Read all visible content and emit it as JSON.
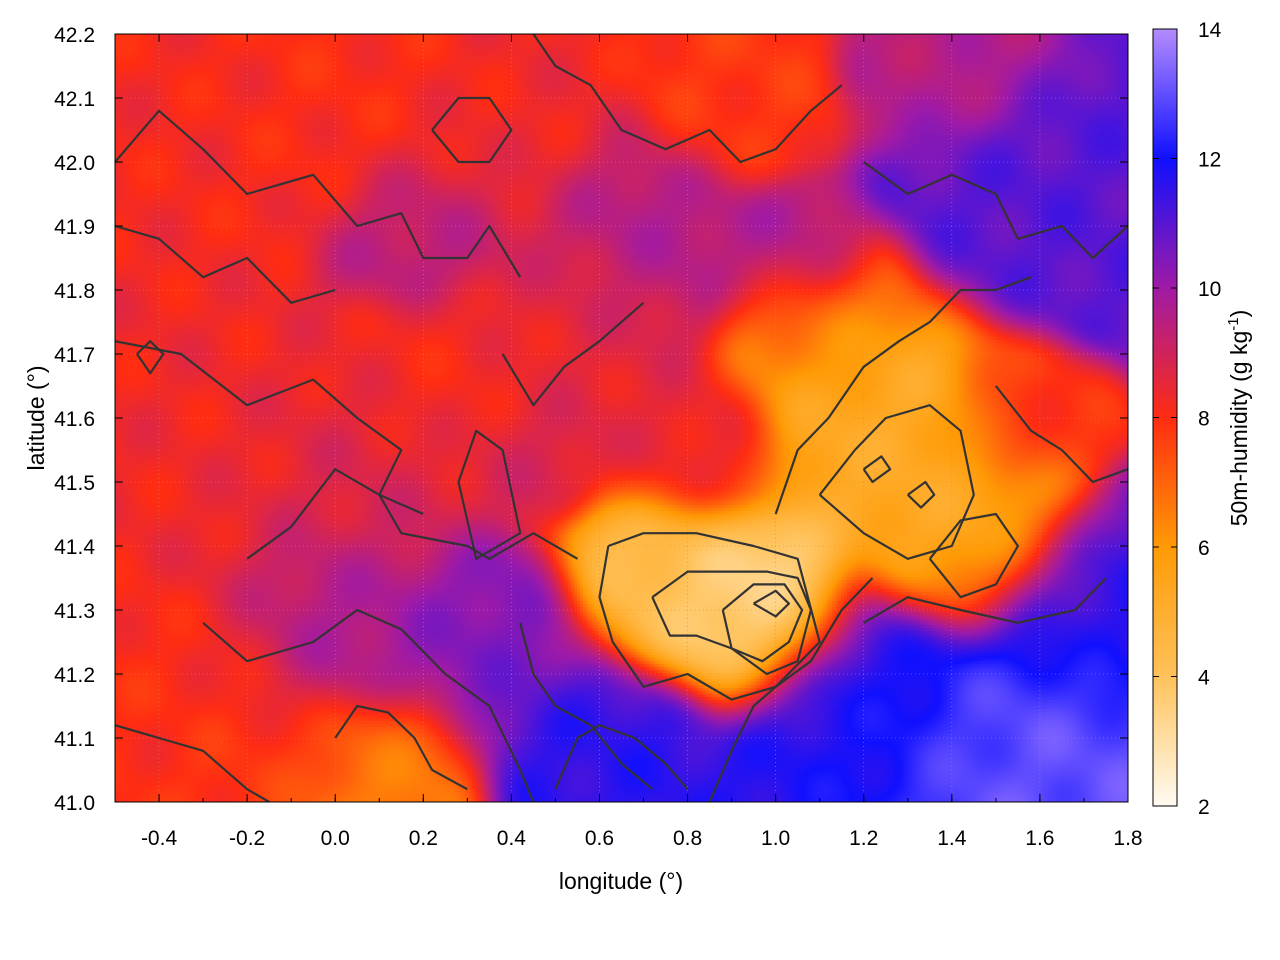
{
  "chart_data": {
    "type": "heatmap",
    "title": "",
    "xlabel": "longitude (°)",
    "ylabel": "latitude (°)",
    "xlim": [
      -0.5,
      1.8
    ],
    "ylim": [
      41.0,
      42.2
    ],
    "xticks": [
      "-0.4",
      "-0.2",
      "0.0",
      "0.2",
      "0.4",
      "0.6",
      "0.8",
      "1.0",
      "1.2",
      "1.4",
      "1.6",
      "1.8"
    ],
    "xtick_values": [
      -0.4,
      -0.2,
      0.0,
      0.2,
      0.4,
      0.6,
      0.8,
      1.0,
      1.2,
      1.4,
      1.6,
      1.8
    ],
    "yticks": [
      "41.0",
      "41.1",
      "41.2",
      "41.3",
      "41.4",
      "41.5",
      "41.6",
      "41.7",
      "41.8",
      "41.9",
      "42.0",
      "42.1",
      "42.2"
    ],
    "ytick_values": [
      41.0,
      41.1,
      41.2,
      41.3,
      41.4,
      41.5,
      41.6,
      41.7,
      41.8,
      41.9,
      42.0,
      42.1,
      42.2
    ],
    "colorbar": {
      "label": "50m-humidity (g kg",
      "label_sup": "-1",
      "label_end": ")",
      "range": [
        2,
        14
      ],
      "ticks": [
        "2",
        "4",
        "6",
        "8",
        "10",
        "12",
        "14"
      ],
      "tick_values": [
        2,
        4,
        6,
        8,
        10,
        12,
        14
      ],
      "colors": [
        "#fffbf2",
        "#ffc25a",
        "#ff9a05",
        "#ff2c12",
        "#a01aa6",
        "#1010ff",
        "#b48cff"
      ]
    },
    "contour_color": "#333333",
    "grid": true,
    "humidity_regions": [
      {
        "lon": -0.3,
        "lat": 42.05,
        "q": 8.2,
        "r": 0.2
      },
      {
        "lon": 0.0,
        "lat": 42.1,
        "q": 8.0,
        "r": 0.22
      },
      {
        "lon": 0.35,
        "lat": 42.05,
        "q": 8.3,
        "r": 0.2
      },
      {
        "lon": 0.9,
        "lat": 42.1,
        "q": 7.8,
        "r": 0.15
      },
      {
        "lon": 1.4,
        "lat": 42.15,
        "q": 9.5,
        "r": 0.15
      },
      {
        "lon": -0.3,
        "lat": 41.55,
        "q": 8.3,
        "r": 0.25
      },
      {
        "lon": 0.05,
        "lat": 41.5,
        "q": 8.8,
        "r": 0.2
      },
      {
        "lon": 0.25,
        "lat": 41.65,
        "q": 8.1,
        "r": 0.18
      },
      {
        "lon": 0.55,
        "lat": 41.75,
        "q": 8.5,
        "r": 0.18
      },
      {
        "lon": 0.2,
        "lat": 41.9,
        "q": 9.6,
        "r": 0.15
      },
      {
        "lon": 0.7,
        "lat": 41.88,
        "q": 9.7,
        "r": 0.18
      },
      {
        "lon": 1.05,
        "lat": 41.85,
        "q": 9.9,
        "r": 0.12
      },
      {
        "lon": 1.6,
        "lat": 41.95,
        "q": 11.0,
        "r": 0.22
      },
      {
        "lon": 1.25,
        "lat": 41.6,
        "q": 5.2,
        "r": 0.2
      },
      {
        "lon": 1.1,
        "lat": 41.75,
        "q": 6.5,
        "r": 0.15
      },
      {
        "lon": 0.95,
        "lat": 41.3,
        "q": 3.0,
        "r": 0.15
      },
      {
        "lon": 0.75,
        "lat": 41.35,
        "q": 4.2,
        "r": 0.16
      },
      {
        "lon": 1.45,
        "lat": 41.42,
        "q": 5.3,
        "r": 0.17
      },
      {
        "lon": 1.55,
        "lat": 41.6,
        "q": 8.0,
        "r": 0.12
      },
      {
        "lon": 0.35,
        "lat": 41.25,
        "q": 10.5,
        "r": 0.17
      },
      {
        "lon": 0.0,
        "lat": 41.28,
        "q": 9.8,
        "r": 0.2
      },
      {
        "lon": -0.3,
        "lat": 41.2,
        "q": 8.0,
        "r": 0.18
      },
      {
        "lon": 0.1,
        "lat": 41.05,
        "q": 6.5,
        "r": 0.15
      },
      {
        "lon": -0.15,
        "lat": 41.08,
        "q": 7.8,
        "r": 0.13
      },
      {
        "lon": 0.6,
        "lat": 41.08,
        "q": 11.6,
        "r": 0.17
      },
      {
        "lon": 1.2,
        "lat": 41.15,
        "q": 11.8,
        "r": 0.2
      },
      {
        "lon": 1.55,
        "lat": 41.08,
        "q": 13.0,
        "r": 0.22
      },
      {
        "lon": 1.7,
        "lat": 41.3,
        "q": 11.6,
        "r": 0.18
      },
      {
        "lon": 0.8,
        "lat": 41.55,
        "q": 8.5,
        "r": 0.14
      },
      {
        "lon": 0.45,
        "lat": 41.55,
        "q": 8.9,
        "r": 0.12
      }
    ],
    "contours": [
      [
        [
          -0.5,
          42.0
        ],
        [
          -0.4,
          42.08
        ],
        [
          -0.3,
          42.02
        ],
        [
          -0.2,
          41.95
        ],
        [
          -0.05,
          41.98
        ],
        [
          0.05,
          41.9
        ],
        [
          0.15,
          41.92
        ],
        [
          0.2,
          41.85
        ],
        [
          0.3,
          41.85
        ],
        [
          0.35,
          41.9
        ],
        [
          0.42,
          41.82
        ]
      ],
      [
        [
          -0.5,
          41.72
        ],
        [
          -0.35,
          41.7
        ],
        [
          -0.2,
          41.62
        ],
        [
          -0.05,
          41.66
        ],
        [
          0.05,
          41.6
        ],
        [
          0.15,
          41.55
        ],
        [
          0.1,
          41.48
        ],
        [
          0.15,
          41.42
        ],
        [
          0.3,
          41.4
        ],
        [
          0.35,
          41.38
        ],
        [
          0.45,
          41.42
        ],
        [
          0.55,
          41.38
        ]
      ],
      [
        [
          -0.2,
          41.38
        ],
        [
          -0.1,
          41.43
        ],
        [
          0.0,
          41.52
        ],
        [
          0.1,
          41.48
        ],
        [
          0.2,
          41.45
        ]
      ],
      [
        [
          0.28,
          41.5
        ],
        [
          0.32,
          41.58
        ],
        [
          0.38,
          41.55
        ],
        [
          0.42,
          41.42
        ],
        [
          0.32,
          41.38
        ],
        [
          0.28,
          41.5
        ]
      ],
      [
        [
          0.38,
          41.7
        ],
        [
          0.45,
          41.62
        ],
        [
          0.52,
          41.68
        ],
        [
          0.6,
          41.72
        ],
        [
          0.7,
          41.78
        ]
      ],
      [
        [
          0.62,
          41.4
        ],
        [
          0.7,
          41.42
        ],
        [
          0.82,
          41.42
        ],
        [
          0.95,
          41.4
        ],
        [
          1.05,
          41.38
        ],
        [
          1.1,
          41.25
        ],
        [
          1.0,
          41.18
        ],
        [
          0.9,
          41.16
        ],
        [
          0.8,
          41.2
        ],
        [
          0.7,
          41.18
        ],
        [
          0.63,
          41.25
        ],
        [
          0.6,
          41.32
        ],
        [
          0.62,
          41.4
        ]
      ],
      [
        [
          0.72,
          41.32
        ],
        [
          0.8,
          41.36
        ],
        [
          0.9,
          41.36
        ],
        [
          0.98,
          41.36
        ],
        [
          1.05,
          41.35
        ],
        [
          1.08,
          41.3
        ],
        [
          1.05,
          41.22
        ],
        [
          0.98,
          41.2
        ],
        [
          0.9,
          41.24
        ],
        [
          0.82,
          41.26
        ],
        [
          0.76,
          41.26
        ],
        [
          0.72,
          41.32
        ]
      ],
      [
        [
          0.88,
          41.3
        ],
        [
          0.95,
          41.34
        ],
        [
          1.02,
          41.34
        ],
        [
          1.06,
          41.3
        ],
        [
          1.03,
          41.25
        ],
        [
          0.97,
          41.22
        ],
        [
          0.9,
          41.24
        ],
        [
          0.88,
          41.3
        ]
      ],
      [
        [
          0.95,
          41.31
        ],
        [
          1.0,
          41.33
        ],
        [
          1.03,
          41.31
        ],
        [
          1.0,
          41.29
        ],
        [
          0.95,
          41.31
        ]
      ],
      [
        [
          1.0,
          41.45
        ],
        [
          1.05,
          41.55
        ],
        [
          1.12,
          41.6
        ],
        [
          1.2,
          41.68
        ],
        [
          1.28,
          41.72
        ],
        [
          1.35,
          41.75
        ],
        [
          1.42,
          41.8
        ],
        [
          1.5,
          41.8
        ],
        [
          1.58,
          41.82
        ]
      ],
      [
        [
          1.1,
          41.48
        ],
        [
          1.18,
          41.55
        ],
        [
          1.25,
          41.6
        ],
        [
          1.35,
          41.62
        ],
        [
          1.42,
          41.58
        ],
        [
          1.45,
          41.48
        ],
        [
          1.4,
          41.4
        ],
        [
          1.3,
          41.38
        ],
        [
          1.2,
          41.42
        ],
        [
          1.1,
          41.48
        ]
      ],
      [
        [
          1.35,
          41.38
        ],
        [
          1.42,
          41.44
        ],
        [
          1.5,
          41.45
        ],
        [
          1.55,
          41.4
        ],
        [
          1.5,
          41.34
        ],
        [
          1.42,
          41.32
        ],
        [
          1.35,
          41.38
        ]
      ],
      [
        [
          1.2,
          41.28
        ],
        [
          1.3,
          41.32
        ],
        [
          1.42,
          41.3
        ],
        [
          1.55,
          41.28
        ],
        [
          1.68,
          41.3
        ],
        [
          1.75,
          41.35
        ]
      ],
      [
        [
          0.5,
          41.02
        ],
        [
          0.55,
          41.1
        ],
        [
          0.6,
          41.12
        ],
        [
          0.68,
          41.1
        ],
        [
          0.75,
          41.06
        ],
        [
          0.8,
          41.02
        ]
      ],
      [
        [
          0.42,
          41.28
        ],
        [
          0.45,
          41.2
        ],
        [
          0.5,
          41.15
        ],
        [
          0.58,
          41.12
        ],
        [
          0.65,
          41.06
        ],
        [
          0.72,
          41.02
        ]
      ],
      [
        [
          0.85,
          41.0
        ],
        [
          0.9,
          41.08
        ],
        [
          0.95,
          41.15
        ],
        [
          1.0,
          41.18
        ],
        [
          1.08,
          41.22
        ],
        [
          1.15,
          41.3
        ],
        [
          1.22,
          41.35
        ]
      ],
      [
        [
          -0.3,
          41.28
        ],
        [
          -0.2,
          41.22
        ],
        [
          -0.05,
          41.25
        ],
        [
          0.05,
          41.3
        ],
        [
          0.15,
          41.27
        ],
        [
          0.25,
          41.2
        ],
        [
          0.35,
          41.15
        ],
        [
          0.42,
          41.05
        ],
        [
          0.45,
          41.0
        ]
      ],
      [
        [
          -0.5,
          41.12
        ],
        [
          -0.4,
          41.1
        ],
        [
          -0.3,
          41.08
        ],
        [
          -0.2,
          41.02
        ],
        [
          -0.15,
          41.0
        ]
      ],
      [
        [
          0.0,
          41.1
        ],
        [
          0.05,
          41.15
        ],
        [
          0.12,
          41.14
        ],
        [
          0.18,
          41.1
        ],
        [
          0.22,
          41.05
        ],
        [
          0.3,
          41.02
        ]
      ],
      [
        [
          0.45,
          42.2
        ],
        [
          0.5,
          42.15
        ],
        [
          0.58,
          42.12
        ],
        [
          0.65,
          42.05
        ],
        [
          0.75,
          42.02
        ],
        [
          0.85,
          42.05
        ],
        [
          0.92,
          42.0
        ],
        [
          1.0,
          42.02
        ],
        [
          1.08,
          42.08
        ],
        [
          1.15,
          42.12
        ]
      ],
      [
        [
          1.2,
          42.0
        ],
        [
          1.3,
          41.95
        ],
        [
          1.4,
          41.98
        ],
        [
          1.5,
          41.95
        ],
        [
          1.55,
          41.88
        ],
        [
          1.65,
          41.9
        ],
        [
          1.72,
          41.85
        ],
        [
          1.8,
          41.9
        ]
      ],
      [
        [
          1.5,
          41.65
        ],
        [
          1.58,
          41.58
        ],
        [
          1.65,
          41.55
        ],
        [
          1.72,
          41.5
        ],
        [
          1.8,
          41.52
        ]
      ],
      [
        [
          -0.5,
          41.9
        ],
        [
          -0.4,
          41.88
        ],
        [
          -0.3,
          41.82
        ],
        [
          -0.2,
          41.85
        ],
        [
          -0.1,
          41.78
        ],
        [
          0.0,
          41.8
        ]
      ],
      [
        [
          0.22,
          42.05
        ],
        [
          0.28,
          42.1
        ],
        [
          0.35,
          42.1
        ],
        [
          0.4,
          42.05
        ],
        [
          0.35,
          42.0
        ],
        [
          0.28,
          42.0
        ],
        [
          0.22,
          42.05
        ]
      ],
      [
        [
          1.3,
          41.48
        ],
        [
          1.34,
          41.5
        ],
        [
          1.36,
          41.48
        ],
        [
          1.33,
          41.46
        ],
        [
          1.3,
          41.48
        ]
      ],
      [
        [
          1.2,
          41.52
        ],
        [
          1.24,
          41.54
        ],
        [
          1.26,
          41.52
        ],
        [
          1.22,
          41.5
        ],
        [
          1.2,
          41.52
        ]
      ],
      [
        [
          -0.45,
          41.7
        ],
        [
          -0.42,
          41.72
        ],
        [
          -0.39,
          41.7
        ],
        [
          -0.42,
          41.67
        ],
        [
          -0.45,
          41.7
        ]
      ]
    ]
  }
}
